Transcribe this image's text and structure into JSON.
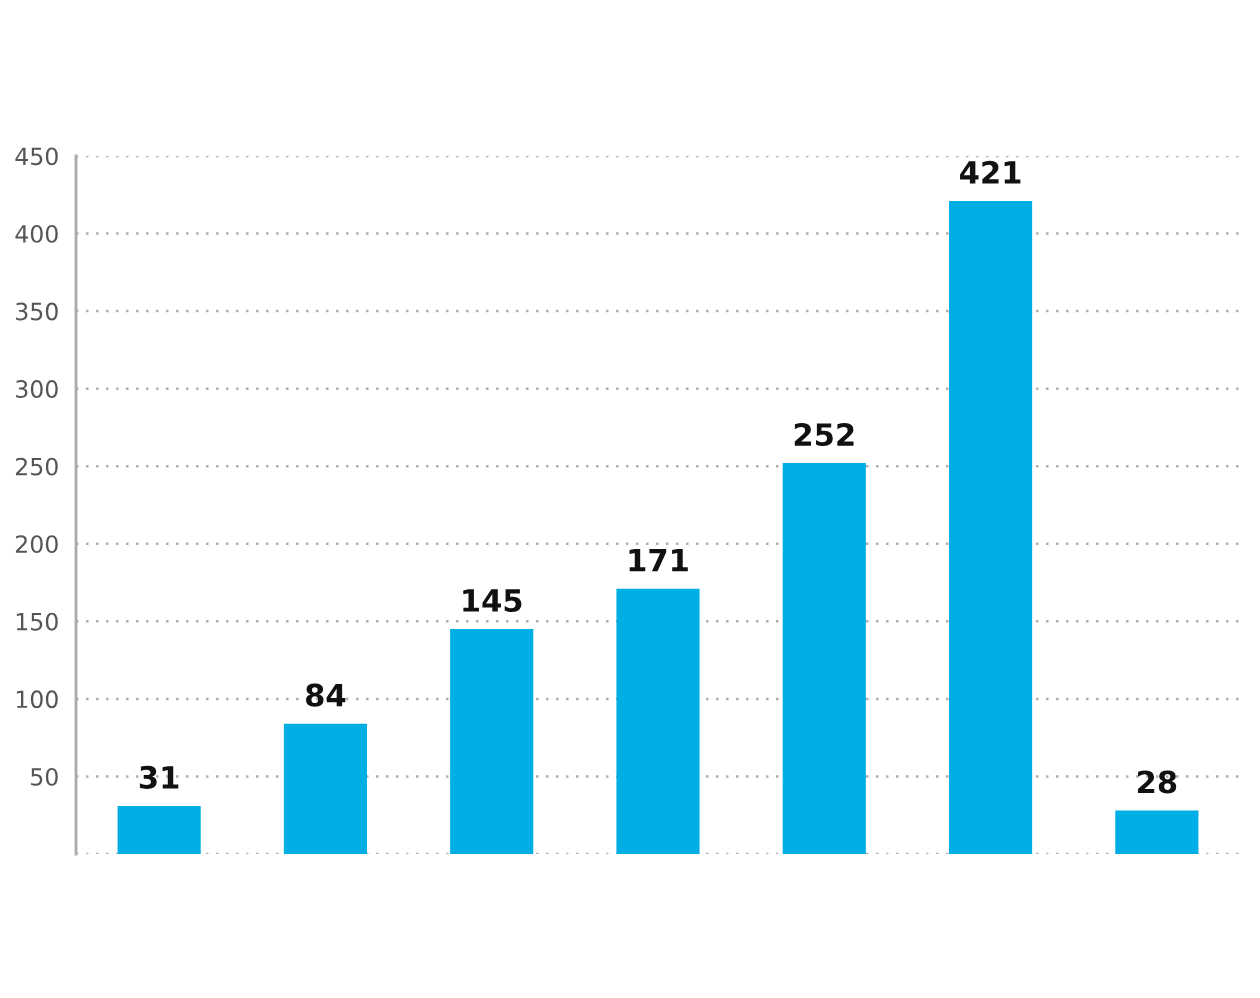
{
  "chart_data": {
    "type": "bar",
    "categories": [
      null,
      null,
      null,
      null,
      null,
      null,
      null
    ],
    "values": [
      31,
      84,
      145,
      171,
      252,
      421,
      28
    ],
    "color": "#00aee6",
    "ylim": [
      0,
      450
    ],
    "yticks": [
      {
        "value": 0,
        "label": null
      },
      50,
      100,
      150,
      200,
      250,
      300,
      350,
      400,
      450
    ],
    "grid": "y",
    "data_labels": true,
    "legend": false
  }
}
